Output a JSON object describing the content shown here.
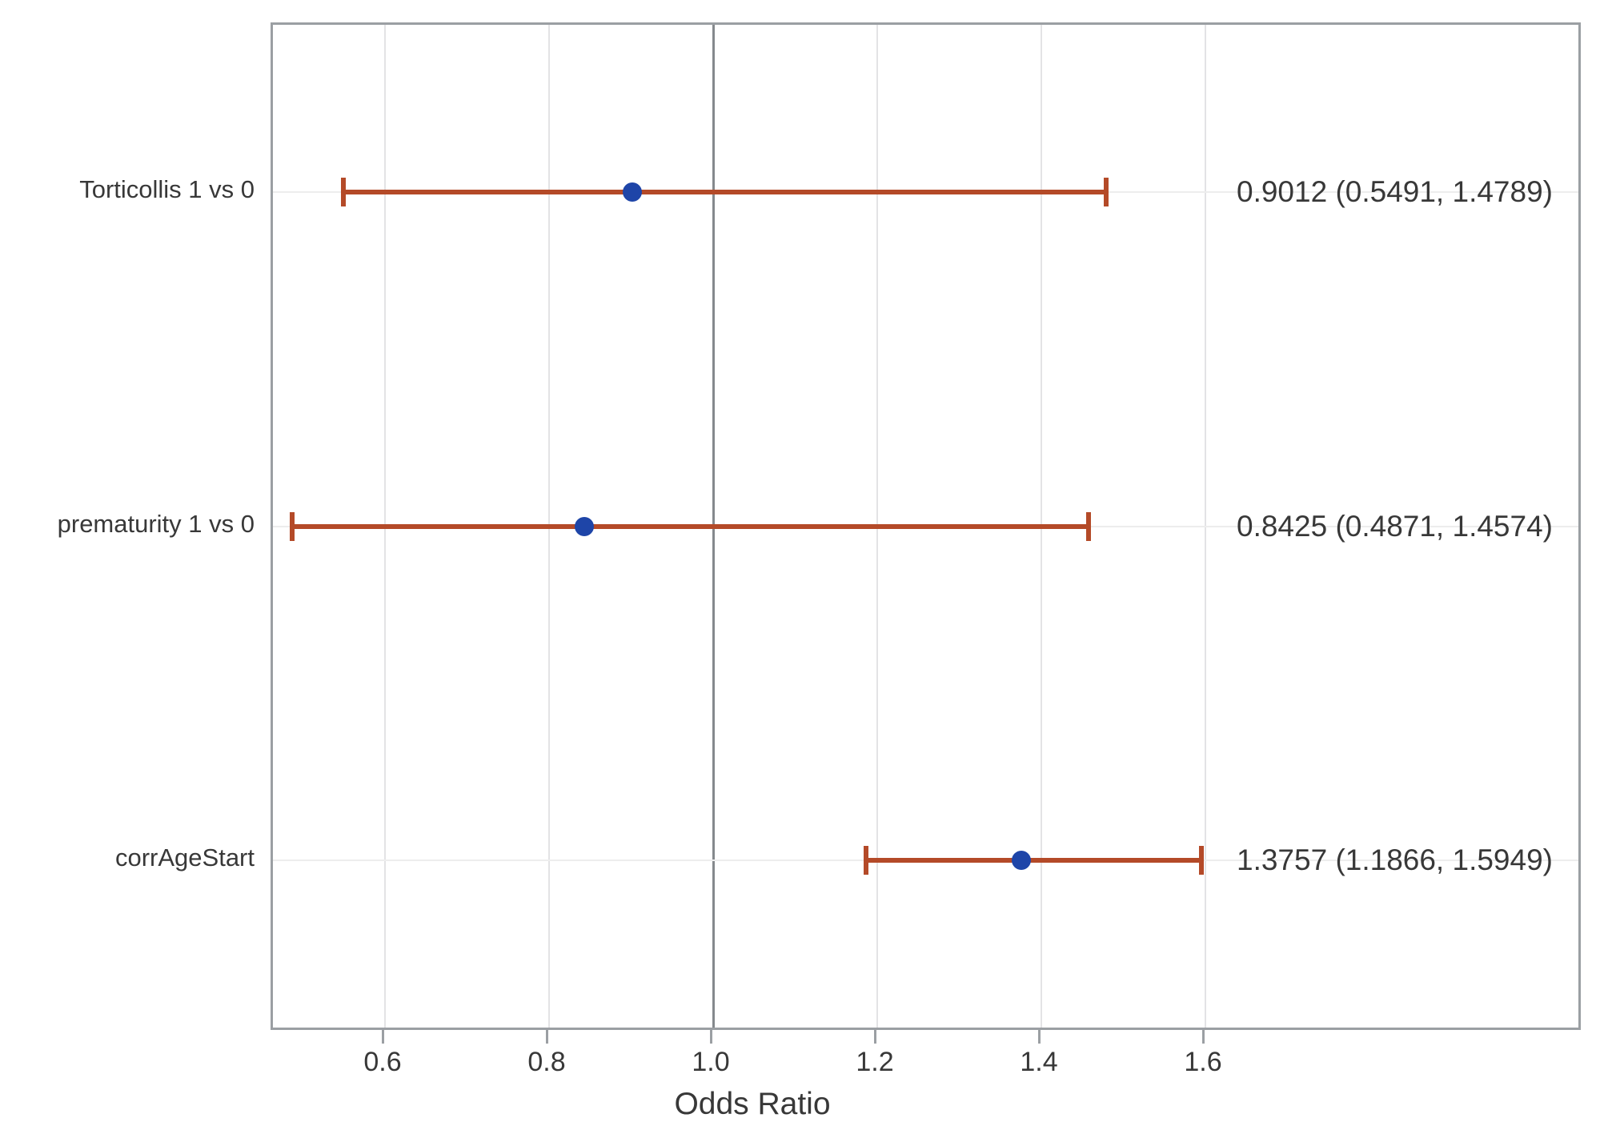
{
  "chart_data": {
    "type": "scatter",
    "variant": "forest-plot",
    "title": "",
    "xlabel": "Odds Ratio",
    "ylabel": "",
    "xlim": [
      0.4634,
      2.0546
    ],
    "x_ticks": [
      0.6,
      0.8,
      1.0,
      1.2,
      1.4,
      1.6
    ],
    "x_tick_labels": [
      "0.6",
      "0.8",
      "1.0",
      "1.2",
      "1.4",
      "1.6"
    ],
    "reference_line_x": 1.0,
    "grid": "vertical-light",
    "legend": "none",
    "rows": [
      {
        "label": "Torticollis 1 vs 0",
        "estimate": 0.9012,
        "lower": 0.5491,
        "upper": 1.4789,
        "annotation": "0.9012 (0.5491, 1.4789)"
      },
      {
        "label": "prematurity 1 vs 0",
        "estimate": 0.8425,
        "lower": 0.4871,
        "upper": 1.4574,
        "annotation": "0.8425 (0.4871, 1.4574)"
      },
      {
        "label": "corrAgeStart",
        "estimate": 1.3757,
        "lower": 1.1866,
        "upper": 1.5949,
        "annotation": "1.3757 (1.1866, 1.5949)"
      }
    ],
    "colors": {
      "marker": "#1e45a8",
      "ci_line": "#b44a28",
      "reference_line": "#85898d",
      "gridline": "#e3e3e5",
      "row_gridline": "#ededed",
      "plot_border": "#9b9fa3",
      "text": "#383838"
    }
  }
}
